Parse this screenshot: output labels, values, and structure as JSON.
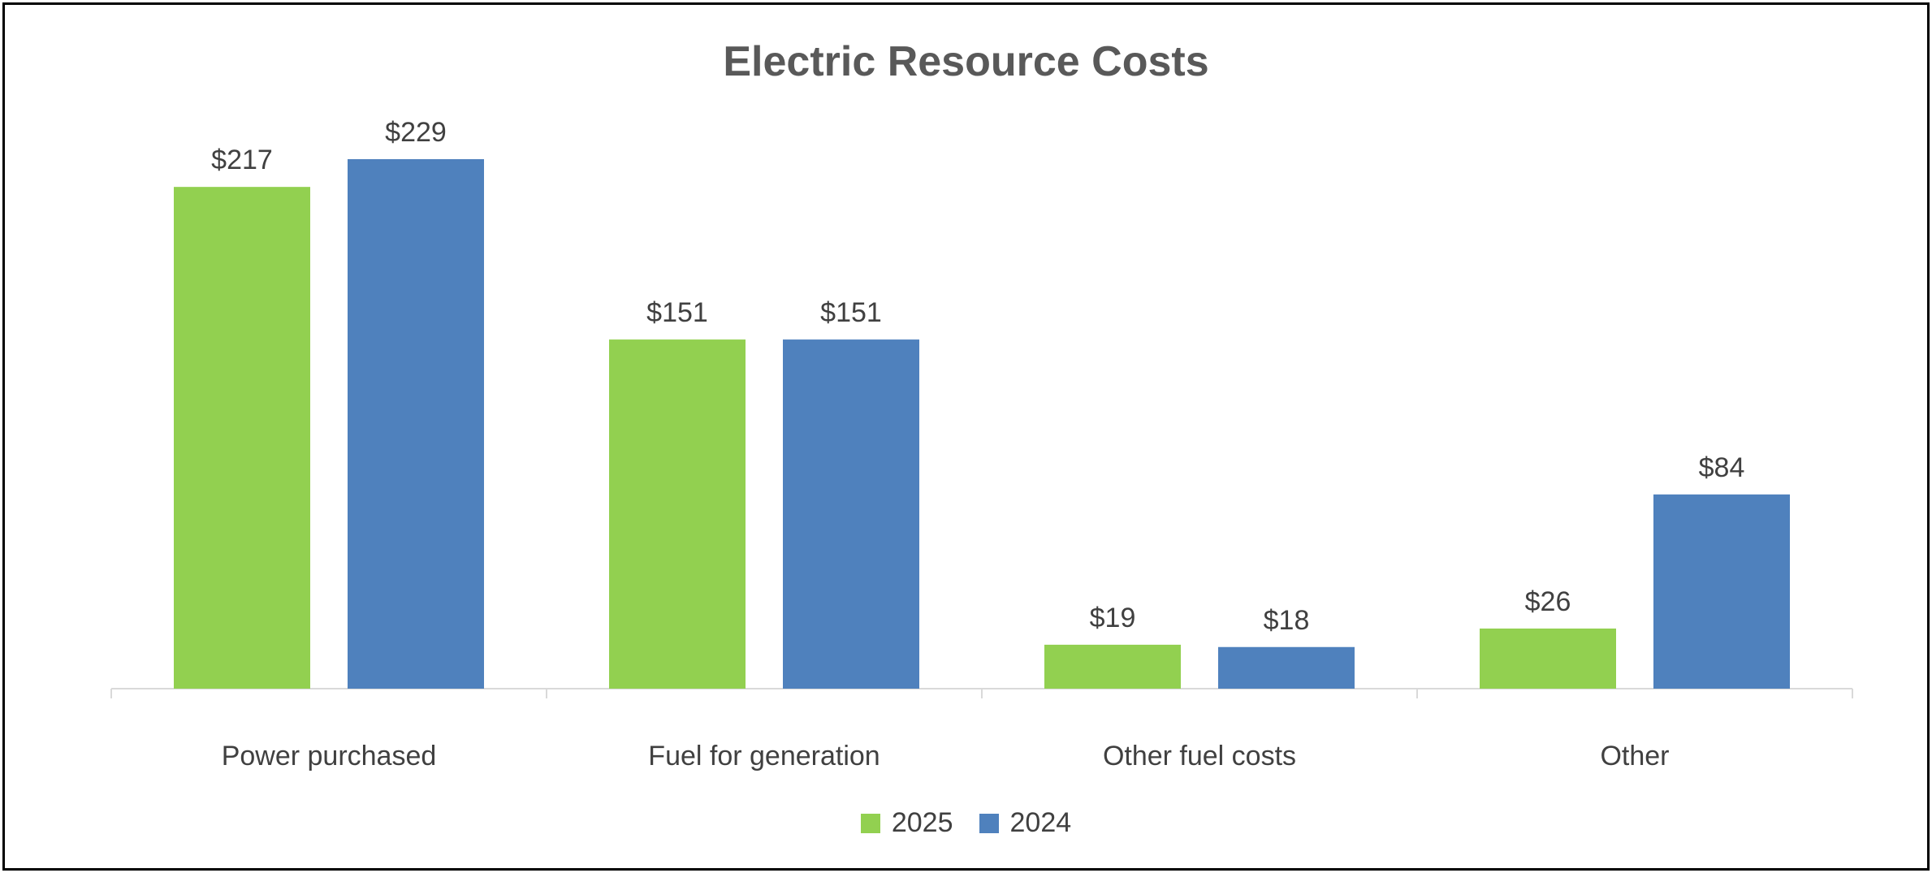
{
  "chart_data": {
    "type": "bar",
    "title": "Electric Resource Costs",
    "categories": [
      "Power purchased",
      "Fuel for generation",
      "Other fuel costs",
      "Other"
    ],
    "series": [
      {
        "name": "2025",
        "values": [
          217,
          151,
          19,
          26
        ],
        "labels": [
          "$217",
          "$151",
          "$19",
          "$26"
        ],
        "color": "#92D050"
      },
      {
        "name": "2024",
        "values": [
          229,
          151,
          18,
          84
        ],
        "labels": [
          "$229",
          "$151",
          "$18",
          "$84"
        ],
        "color": "#4F81BD"
      }
    ],
    "xlabel": "",
    "ylabel": "",
    "ylim": [
      0,
      229
    ],
    "grid": false,
    "legend": "bottom"
  }
}
